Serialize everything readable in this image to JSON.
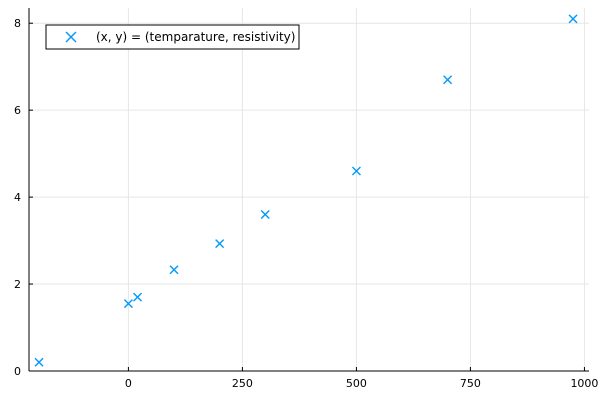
{
  "chart_data": {
    "type": "scatter",
    "title": "",
    "xlabel": "",
    "ylabel": "",
    "xlim": [
      -218,
      1010
    ],
    "ylim": [
      0,
      8.35
    ],
    "xticks": [
      0,
      250,
      500,
      750,
      1000
    ],
    "yticks": [
      0,
      2,
      4,
      6,
      8
    ],
    "grid": true,
    "legend_position": "top-left",
    "marker": "x",
    "color": "#009AFA",
    "series": [
      {
        "name": "(x, y) = (temparature, resistivity)",
        "x": [
          -196,
          0,
          20,
          100,
          200,
          300,
          500,
          700,
          975
        ],
        "y": [
          0.2,
          1.55,
          1.7,
          2.33,
          2.93,
          3.6,
          4.6,
          6.7,
          8.1
        ]
      }
    ]
  }
}
